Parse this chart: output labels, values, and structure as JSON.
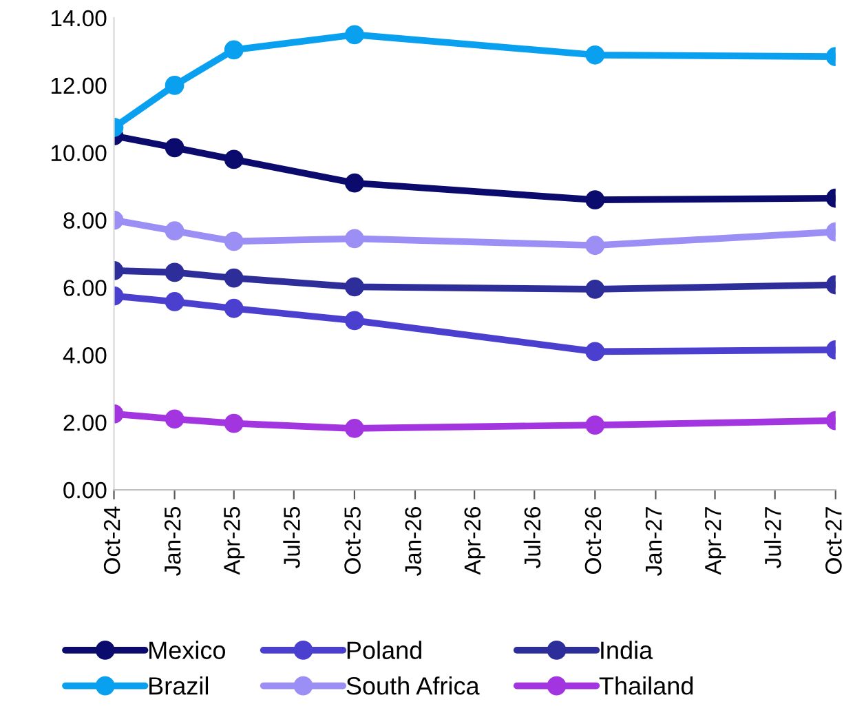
{
  "chart_data": {
    "type": "line",
    "x": [
      "2024-10",
      "2025-01",
      "2025-04",
      "2025-10",
      "2026-10",
      "2027-10"
    ],
    "series": [
      {
        "name": "Mexico",
        "color": "#0b0b6e",
        "values": [
          10.5,
          10.15,
          9.8,
          9.1,
          8.6,
          8.65
        ]
      },
      {
        "name": "Brazil",
        "color": "#0aa0f0",
        "values": [
          10.75,
          12.0,
          13.05,
          13.5,
          12.9,
          12.85
        ]
      },
      {
        "name": "Poland",
        "color": "#4b3fcf",
        "values": [
          5.75,
          5.58,
          5.38,
          5.02,
          4.1,
          4.15
        ]
      },
      {
        "name": "South Africa",
        "color": "#9b8ff5",
        "values": [
          8.0,
          7.68,
          7.37,
          7.45,
          7.25,
          7.65
        ]
      },
      {
        "name": "India",
        "color": "#2e2e9a",
        "values": [
          6.5,
          6.45,
          6.28,
          6.02,
          5.95,
          6.08
        ]
      },
      {
        "name": "Thailand",
        "color": "#a335e0",
        "values": [
          2.25,
          2.1,
          1.97,
          1.82,
          1.92,
          2.05
        ]
      }
    ],
    "xlim": [
      "2024-10",
      "2027-10"
    ],
    "xticks": [
      {
        "value": "2024-10",
        "label": "Oct-24"
      },
      {
        "value": "2025-01",
        "label": "Jan-25"
      },
      {
        "value": "2025-04",
        "label": "Apr-25"
      },
      {
        "value": "2025-07",
        "label": "Jul-25"
      },
      {
        "value": "2025-10",
        "label": "Oct-25"
      },
      {
        "value": "2026-01",
        "label": "Jan-26"
      },
      {
        "value": "2026-04",
        "label": "Apr-26"
      },
      {
        "value": "2026-07",
        "label": "Jul-26"
      },
      {
        "value": "2026-10",
        "label": "Oct-26"
      },
      {
        "value": "2027-01",
        "label": "Jan-27"
      },
      {
        "value": "2027-04",
        "label": "Apr-27"
      },
      {
        "value": "2027-07",
        "label": "Jul-27"
      },
      {
        "value": "2027-10",
        "label": "Oct-27"
      }
    ],
    "ylim": [
      0,
      14
    ],
    "yticks": [
      {
        "value": 0,
        "label": "0.00"
      },
      {
        "value": 2,
        "label": "2.00"
      },
      {
        "value": 4,
        "label": "4.00"
      },
      {
        "value": 6,
        "label": "6.00"
      },
      {
        "value": 8,
        "label": "8.00"
      },
      {
        "value": 10,
        "label": "10.00"
      },
      {
        "value": 12,
        "label": "12.00"
      },
      {
        "value": 14,
        "label": "14.00"
      }
    ],
    "grid": false,
    "legend": "bottom",
    "marker": "circle",
    "line_style": "solid"
  }
}
